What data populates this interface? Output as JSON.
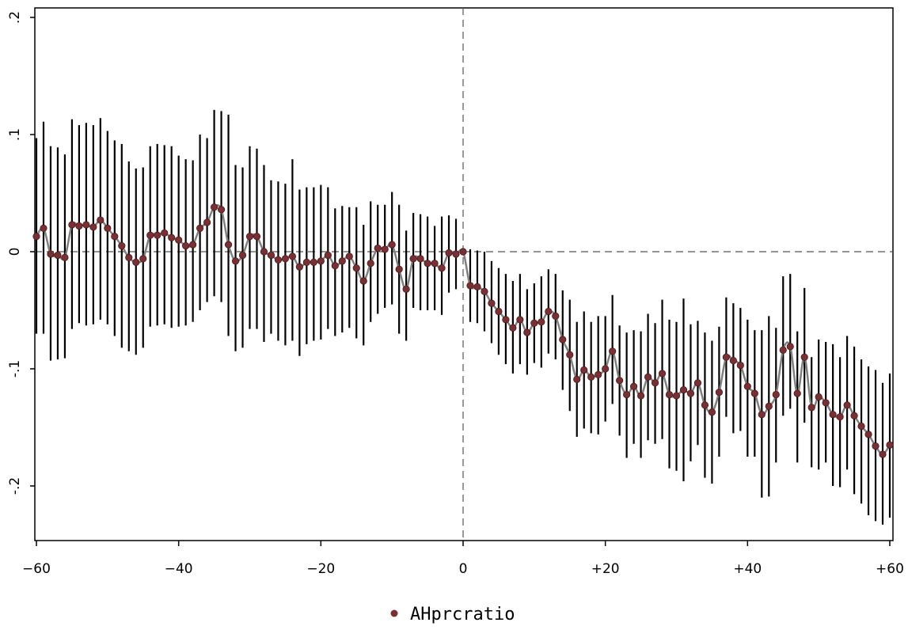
{
  "chart_data": {
    "type": "scatter",
    "title": "",
    "xlabel": "",
    "ylabel": "",
    "xlim": [
      -60,
      60
    ],
    "ylim": [
      -0.25,
      0.2
    ],
    "x_ticks": [
      -60,
      -40,
      -20,
      0,
      20,
      40,
      60
    ],
    "x_tick_labels": [
      "−60",
      "−40",
      "−20",
      "0",
      "+20",
      "+40",
      "+60"
    ],
    "y_ticks": [
      -0.2,
      -0.1,
      0,
      0.1,
      0.2
    ],
    "y_tick_labels": [
      "-.2",
      "-.1",
      "0",
      ".1",
      ".2"
    ],
    "reference_lines": {
      "x": 0,
      "y": 0,
      "style": "dashed"
    },
    "grid": false,
    "legend": {
      "placement": "bottom-center",
      "entries": [
        "AHprcratio"
      ]
    },
    "series": [
      {
        "name": "AHprcratio",
        "marker_color": "#7a2f33",
        "line_color": "#808080",
        "errorbar_color": "#000000",
        "x": [
          -60,
          -59,
          -58,
          -57,
          -56,
          -55,
          -54,
          -53,
          -52,
          -51,
          -50,
          -49,
          -48,
          -47,
          -46,
          -45,
          -44,
          -43,
          -42,
          -41,
          -40,
          -39,
          -38,
          -37,
          -36,
          -35,
          -34,
          -33,
          -32,
          -31,
          -30,
          -29,
          -28,
          -27,
          -26,
          -25,
          -24,
          -23,
          -22,
          -21,
          -20,
          -19,
          -18,
          -17,
          -16,
          -15,
          -14,
          -13,
          -12,
          -11,
          -10,
          -9,
          -8,
          -7,
          -6,
          -5,
          -4,
          -3,
          -2,
          -1,
          0,
          1,
          2,
          3,
          4,
          5,
          6,
          7,
          8,
          9,
          10,
          11,
          12,
          13,
          14,
          15,
          16,
          17,
          18,
          19,
          20,
          21,
          22,
          23,
          24,
          25,
          26,
          27,
          28,
          29,
          30,
          31,
          32,
          33,
          34,
          35,
          36,
          37,
          38,
          39,
          40,
          41,
          42,
          43,
          44,
          45,
          46,
          47,
          48,
          49,
          50,
          51,
          52,
          53,
          54,
          55,
          56,
          57,
          58,
          59,
          60
        ],
        "y": [
          0.013,
          0.02,
          -0.002,
          -0.003,
          -0.005,
          0.023,
          0.022,
          0.023,
          0.021,
          0.027,
          0.02,
          0.013,
          0.005,
          -0.005,
          -0.009,
          -0.006,
          0.014,
          0.014,
          0.016,
          0.012,
          0.01,
          0.005,
          0.006,
          0.02,
          0.025,
          0.038,
          0.036,
          0.006,
          -0.008,
          -0.003,
          0.013,
          0.013,
          0.0,
          -0.003,
          -0.007,
          -0.006,
          -0.004,
          -0.013,
          -0.009,
          -0.009,
          -0.008,
          -0.003,
          -0.012,
          -0.008,
          -0.004,
          -0.014,
          -0.025,
          -0.01,
          0.003,
          0.002,
          0.006,
          -0.015,
          -0.032,
          -0.006,
          -0.006,
          -0.01,
          -0.01,
          -0.014,
          -0.001,
          -0.002,
          0.0,
          -0.029,
          -0.03,
          -0.034,
          -0.044,
          -0.051,
          -0.058,
          -0.065,
          -0.058,
          -0.069,
          -0.061,
          -0.06,
          -0.051,
          -0.055,
          -0.075,
          -0.088,
          -0.109,
          -0.101,
          -0.107,
          -0.105,
          -0.1,
          -0.085,
          -0.11,
          -0.122,
          -0.115,
          -0.123,
          -0.107,
          -0.112,
          -0.104,
          -0.122,
          -0.123,
          -0.118,
          -0.121,
          -0.112,
          -0.131,
          -0.137,
          -0.12,
          -0.09,
          -0.093,
          -0.097,
          -0.115,
          -0.121,
          -0.139,
          -0.132,
          -0.122,
          -0.084,
          -0.081,
          -0.121,
          -0.09,
          -0.133,
          -0.124,
          -0.129,
          -0.139,
          -0.141,
          -0.131,
          -0.14,
          -0.149,
          -0.156,
          -0.166,
          -0.173,
          -0.165
        ],
        "ci_low": [
          -0.07,
          -0.07,
          -0.093,
          -0.092,
          -0.091,
          -0.066,
          -0.061,
          -0.063,
          -0.062,
          -0.058,
          -0.062,
          -0.072,
          -0.082,
          -0.085,
          -0.088,
          -0.082,
          -0.064,
          -0.063,
          -0.062,
          -0.065,
          -0.064,
          -0.063,
          -0.06,
          -0.05,
          -0.043,
          -0.038,
          -0.043,
          -0.072,
          -0.085,
          -0.082,
          -0.066,
          -0.066,
          -0.077,
          -0.07,
          -0.076,
          -0.08,
          -0.076,
          -0.089,
          -0.079,
          -0.076,
          -0.075,
          -0.066,
          -0.072,
          -0.069,
          -0.065,
          -0.074,
          -0.08,
          -0.06,
          -0.053,
          -0.048,
          -0.045,
          -0.07,
          -0.076,
          -0.048,
          -0.05,
          -0.05,
          -0.05,
          -0.054,
          -0.035,
          -0.032,
          -0.003,
          -0.06,
          -0.061,
          -0.068,
          -0.078,
          -0.088,
          -0.096,
          -0.104,
          -0.096,
          -0.105,
          -0.095,
          -0.099,
          -0.087,
          -0.092,
          -0.118,
          -0.136,
          -0.158,
          -0.151,
          -0.155,
          -0.156,
          -0.145,
          -0.13,
          -0.157,
          -0.176,
          -0.164,
          -0.176,
          -0.161,
          -0.164,
          -0.16,
          -0.185,
          -0.187,
          -0.196,
          -0.179,
          -0.165,
          -0.193,
          -0.198,
          -0.175,
          -0.141,
          -0.155,
          -0.153,
          -0.175,
          -0.175,
          -0.21,
          -0.209,
          -0.18,
          -0.14,
          -0.134,
          -0.18,
          -0.146,
          -0.184,
          -0.186,
          -0.18,
          -0.2,
          -0.201,
          -0.186,
          -0.207,
          -0.215,
          -0.225,
          -0.23,
          -0.233,
          -0.227
        ],
        "ci_high": [
          0.097,
          0.111,
          0.09,
          0.089,
          0.083,
          0.113,
          0.108,
          0.11,
          0.108,
          0.114,
          0.103,
          0.095,
          0.092,
          0.077,
          0.071,
          0.072,
          0.09,
          0.092,
          0.091,
          0.09,
          0.082,
          0.079,
          0.078,
          0.1,
          0.097,
          0.121,
          0.12,
          0.117,
          0.074,
          0.072,
          0.09,
          0.088,
          0.074,
          0.061,
          0.06,
          0.058,
          0.079,
          0.053,
          0.055,
          0.055,
          0.057,
          0.055,
          0.037,
          0.039,
          0.038,
          0.038,
          0.023,
          0.043,
          0.04,
          0.04,
          0.051,
          0.04,
          0.018,
          0.033,
          0.032,
          0.03,
          0.022,
          0.03,
          0.031,
          0.028,
          0.003,
          0.002,
          0.001,
          0.0,
          -0.008,
          -0.014,
          -0.019,
          -0.025,
          -0.019,
          -0.032,
          -0.027,
          -0.021,
          -0.015,
          -0.019,
          -0.033,
          -0.041,
          -0.06,
          -0.051,
          -0.06,
          -0.055,
          -0.055,
          -0.037,
          -0.063,
          -0.069,
          -0.067,
          -0.068,
          -0.053,
          -0.061,
          -0.041,
          -0.058,
          -0.06,
          -0.04,
          -0.062,
          -0.059,
          -0.069,
          -0.076,
          -0.064,
          -0.039,
          -0.044,
          -0.048,
          -0.058,
          -0.067,
          -0.067,
          -0.055,
          -0.065,
          -0.021,
          -0.019,
          -0.068,
          -0.031,
          -0.09,
          -0.075,
          -0.077,
          -0.079,
          -0.09,
          -0.072,
          -0.081,
          -0.092,
          -0.098,
          -0.101,
          -0.112,
          -0.104
        ]
      }
    ]
  }
}
